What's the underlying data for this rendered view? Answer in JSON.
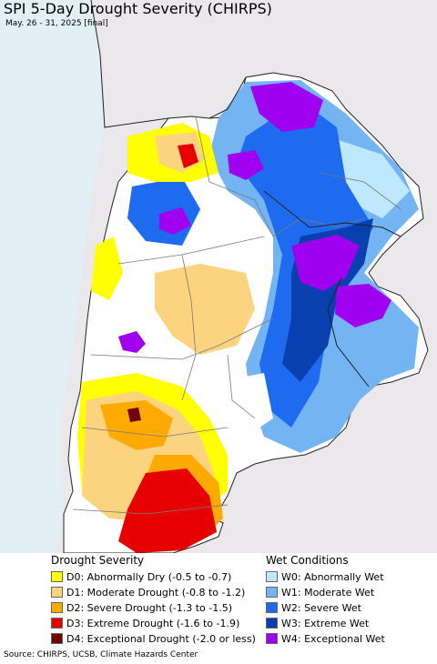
{
  "title": "SPI 5-Day Drought Severity (CHIRPS)",
  "subtitle": "May. 26 - 31, 2025 [final]",
  "colors": {
    "ocean": "#e2f0f6",
    "land_outside": "#ebe8ec",
    "no_anomaly": "#ffffff",
    "border": "#7a7a7a",
    "country_border": "#222222"
  },
  "legend": {
    "drought": {
      "heading": "Drought Severity",
      "items": [
        {
          "label": "D0: Abnormally Dry (-0.5 to -0.7)",
          "color": "#ffff00"
        },
        {
          "label": "D1: Moderate Drought (-0.8 to -1.2)",
          "color": "#fcd37f"
        },
        {
          "label": "D2: Severe Drought (-1.3 to -1.5)",
          "color": "#ffaa00"
        },
        {
          "label": "D3: Extreme Drought (-1.6 to -1.9)",
          "color": "#e60000"
        },
        {
          "label": "D4: Exceptional Drought (-2.0 or less)",
          "color": "#730000"
        }
      ]
    },
    "wet": {
      "heading": "Wet Conditions",
      "items": [
        {
          "label": "W0: Abnormally Wet",
          "color": "#bfe8ff"
        },
        {
          "label": "W1: Moderate Wet",
          "color": "#74b4f2"
        },
        {
          "label": "W2: Severe Wet",
          "color": "#1e6bef"
        },
        {
          "label": "W3: Extreme Wet",
          "color": "#0a3fb0"
        },
        {
          "label": "W4: Exceptional Wet",
          "color": "#a000f0"
        }
      ]
    }
  },
  "source": "Source: CHIRPS, UCSB, Climate Hazards Center"
}
